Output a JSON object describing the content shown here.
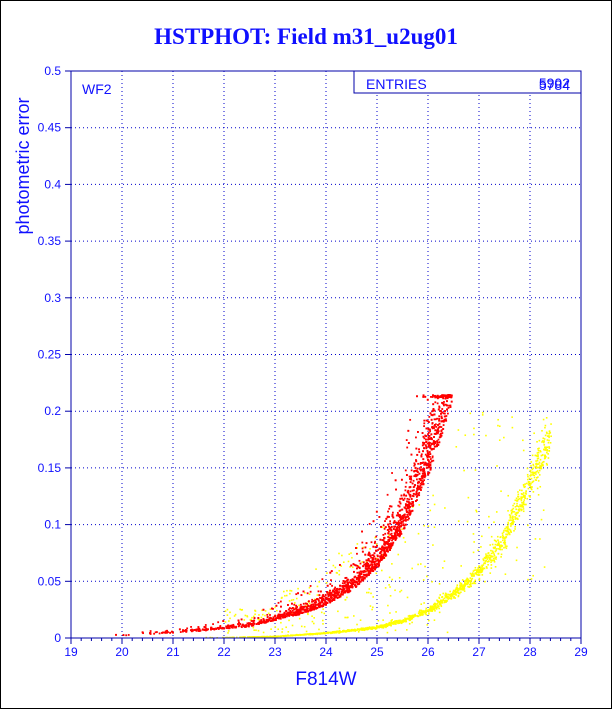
{
  "page": {
    "title": "HSTPHOT: Field m31_u2ug01"
  },
  "chart_data": {
    "type": "scatter",
    "title": "HSTPHOT: Field m31_u2ug01",
    "xlabel": "F814W",
    "ylabel": "photometric error",
    "xlim": [
      19,
      29
    ],
    "ylim": [
      0,
      0.5
    ],
    "x_ticks": [
      "19",
      "20",
      "21",
      "22",
      "23",
      "24",
      "25",
      "26",
      "27",
      "28",
      "29"
    ],
    "y_ticks": [
      "0",
      "0.05",
      "0.1",
      "0.15",
      "0.2",
      "0.25",
      "0.3",
      "0.35",
      "0.4",
      "0.45",
      "0.5"
    ],
    "grid": true,
    "panel_label": "WF2",
    "stats_box": {
      "label": "ENTRIES",
      "values": [
        "5902",
        "5784"
      ]
    },
    "colors": {
      "frame": "#0000aa",
      "grid": "#0000cc",
      "title": "#1010ff",
      "series_main": "#ff0000",
      "series_secondary": "#ffff00"
    },
    "series": [
      {
        "color": "#ff0000",
        "entries": 5902,
        "trend": {
          "x": [
            19.5,
            20.5,
            21.5,
            22.5,
            23.5,
            24.0,
            24.5,
            25.0,
            25.5,
            26.0,
            26.4
          ],
          "y": [
            0.002,
            0.004,
            0.007,
            0.011,
            0.022,
            0.03,
            0.043,
            0.063,
            0.095,
            0.145,
            0.2
          ]
        },
        "cap": 0.215,
        "x_range": [
          19.5,
          26.45
        ]
      },
      {
        "color": "#ffff00",
        "entries": 5784,
        "trend": {
          "x": [
            22.0,
            23.0,
            24.0,
            25.0,
            25.5,
            26.0,
            26.5,
            27.0,
            27.5,
            28.0
          ],
          "y": [
            0.001,
            0.002,
            0.005,
            0.01,
            0.016,
            0.025,
            0.04,
            0.06,
            0.09,
            0.14
          ]
        },
        "x_range": [
          21.5,
          28.4
        ]
      }
    ]
  }
}
